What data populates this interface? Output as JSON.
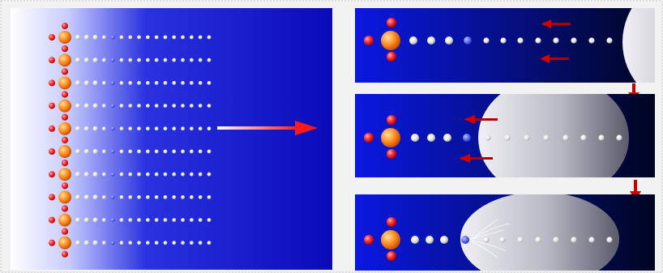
{
  "figure": {
    "colors": {
      "background": "#f2f2f2",
      "frame": "#c8c8c8",
      "blue_deep": "#0a0ab8",
      "blue_dark": "#000a4a",
      "bead": "#eaeaea",
      "bead_blue": "#3a4cff",
      "ring": "#ff2a2a",
      "core": "#ff8a1e",
      "arrow": "#ff1a1a",
      "drop_light": "#e8e8ee",
      "drop_dark": "#5a5a6a"
    },
    "left_panel": {
      "chain_count": 10,
      "beads_per_chain": 16,
      "main_arrow_icon": "right-arrow-icon"
    },
    "right_panels": [
      {
        "stage": 1,
        "drop_coverage": 0.15,
        "contact": false,
        "arrows_icon": "left-arrow-icon"
      },
      {
        "stage": 2,
        "drop_coverage": 0.55,
        "contact": false,
        "arrows_icon": "left-arrow-icon"
      },
      {
        "stage": 3,
        "drop_coverage": 0.68,
        "contact": true,
        "arrows_icon": "left-arrow-icon"
      }
    ],
    "transition_icon": "down-arrow-icon"
  }
}
